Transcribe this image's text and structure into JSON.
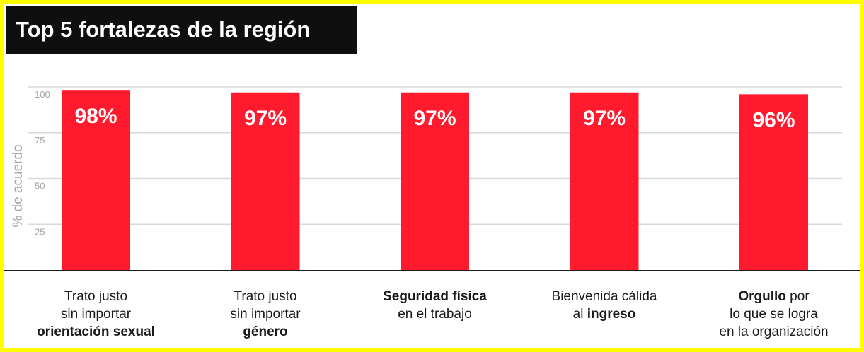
{
  "title": "Top 5 fortalezas de la región",
  "colors": {
    "bar": "#ff1a2e",
    "frame": "#ffff00",
    "title_bg": "#0f0f0f",
    "grid": "#d9d9d9",
    "axis": "#1a1a1a"
  },
  "chart_data": {
    "type": "bar",
    "title": "Top 5 fortalezas de la región",
    "xlabel": "",
    "ylabel": "% de acuerdo",
    "ylim": [
      0,
      100
    ],
    "yticks": [
      "25",
      "50",
      "75",
      "100"
    ],
    "grid": true,
    "legend": "none",
    "categories": [
      "Trato justo sin importar orientación sexual",
      "Trato justo sin importar género",
      "Seguridad física en el trabajo",
      "Bienvenida cálida al ingreso",
      "Orgullo por lo que se logra en la organización"
    ],
    "category_lines": [
      [
        [
          "Trato justo",
          false
        ]
      ],
      [
        [
          "sin importar",
          false
        ]
      ],
      [
        [
          "orientación sexual",
          true
        ]
      ],
      [
        [
          "Trato justo",
          false
        ]
      ],
      [
        [
          "sin importar",
          false
        ]
      ],
      [
        [
          "género",
          true
        ]
      ],
      [
        [
          "Seguridad física",
          true
        ]
      ],
      [
        [
          "en el trabajo",
          false
        ]
      ],
      [
        [
          "Bienvenida cálida",
          false
        ]
      ],
      [
        [
          "al ",
          false
        ],
        [
          "ingreso",
          true
        ]
      ],
      [
        [
          "Orgullo",
          true
        ],
        [
          " por",
          false
        ]
      ],
      [
        [
          "lo que se logra",
          false
        ]
      ],
      [
        [
          "en la organización",
          false
        ]
      ]
    ],
    "category_line_counts": [
      3,
      3,
      2,
      2,
      3
    ],
    "values": [
      98,
      97,
      97,
      97,
      96
    ],
    "data_labels": [
      "98%",
      "97%",
      "97%",
      "97%",
      "96%"
    ]
  }
}
